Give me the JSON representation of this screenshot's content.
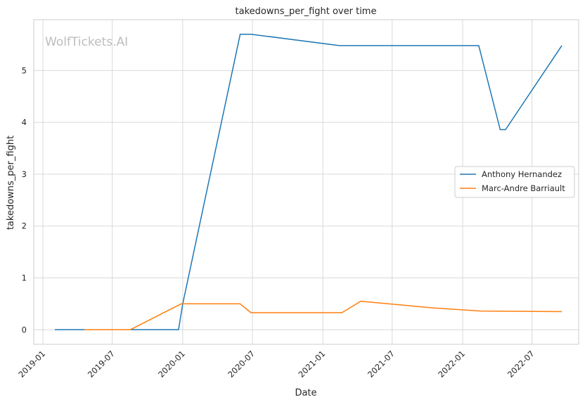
{
  "chart_data": {
    "type": "line",
    "title": "takedowns_per_fight over time",
    "xlabel": "Date",
    "ylabel": "takedowns_per_fight",
    "watermark": "WolfTickets.AI",
    "x_range": [
      "2018-12-08",
      "2022-10-31"
    ],
    "ylim": [
      -0.28,
      5.98
    ],
    "grid": true,
    "legend_position": "center-right",
    "x_ticks": [
      {
        "date": "2019-01-01",
        "label": "2019-01"
      },
      {
        "date": "2019-07-01",
        "label": "2019-07"
      },
      {
        "date": "2020-01-01",
        "label": "2020-01"
      },
      {
        "date": "2020-07-01",
        "label": "2020-07"
      },
      {
        "date": "2021-01-01",
        "label": "2021-01"
      },
      {
        "date": "2021-07-01",
        "label": "2021-07"
      },
      {
        "date": "2022-01-01",
        "label": "2022-01"
      },
      {
        "date": "2022-07-01",
        "label": "2022-07"
      }
    ],
    "y_ticks": [
      {
        "value": 0,
        "label": "0"
      },
      {
        "value": 1,
        "label": "1"
      },
      {
        "value": 2,
        "label": "2"
      },
      {
        "value": 3,
        "label": "3"
      },
      {
        "value": 4,
        "label": "4"
      },
      {
        "value": 5,
        "label": "5"
      }
    ],
    "series": [
      {
        "name": "Anthony Hernandez",
        "color": "#1f77b4",
        "points": [
          {
            "x": "2019-02-01",
            "y": 0
          },
          {
            "x": "2019-12-21",
            "y": 0
          },
          {
            "x": "2020-01-01",
            "y": 0.5
          },
          {
            "x": "2020-05-30",
            "y": 5.7
          },
          {
            "x": "2020-06-27",
            "y": 5.7
          },
          {
            "x": "2021-02-13",
            "y": 5.48
          },
          {
            "x": "2022-02-12",
            "y": 5.48
          },
          {
            "x": "2022-04-09",
            "y": 3.86
          },
          {
            "x": "2022-04-23",
            "y": 3.86
          },
          {
            "x": "2022-09-17",
            "y": 5.48
          }
        ]
      },
      {
        "name": "Marc-Andre Barriault",
        "color": "#ff7f0e",
        "points": [
          {
            "x": "2019-04-20",
            "y": 0
          },
          {
            "x": "2019-08-17",
            "y": 0
          },
          {
            "x": "2019-12-28",
            "y": 0.5
          },
          {
            "x": "2020-05-30",
            "y": 0.5
          },
          {
            "x": "2020-06-27",
            "y": 0.33
          },
          {
            "x": "2021-02-20",
            "y": 0.33
          },
          {
            "x": "2021-04-10",
            "y": 0.55
          },
          {
            "x": "2021-10-16",
            "y": 0.42
          },
          {
            "x": "2022-02-19",
            "y": 0.36
          },
          {
            "x": "2022-09-17",
            "y": 0.35
          }
        ]
      }
    ]
  }
}
